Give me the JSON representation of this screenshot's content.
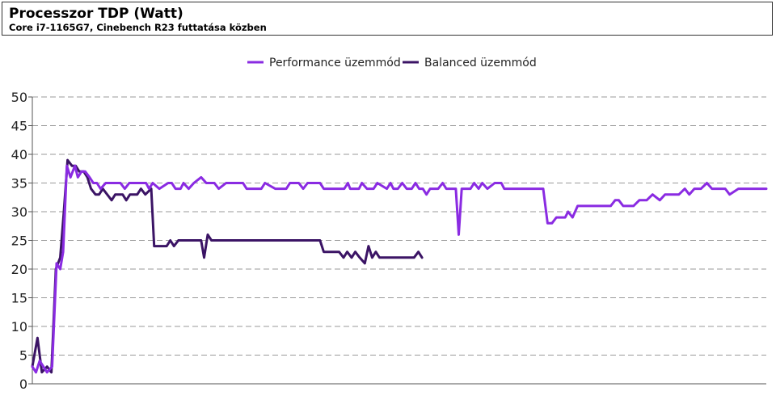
{
  "chart_data": {
    "type": "line",
    "title": "Processzor TDP (Watt)",
    "subtitle": "Core i7-1165G7, Cinebench R23 futtatása közben",
    "xlabel": "",
    "ylabel": "",
    "ylim": [
      0,
      50
    ],
    "yticks": [
      0,
      5,
      10,
      15,
      20,
      25,
      30,
      35,
      40,
      45,
      50
    ],
    "xlim": [
      0,
      100
    ],
    "grid": true,
    "legend_position": "top-center",
    "series": [
      {
        "name": "Performance üzemmód",
        "color": "#8a2be2",
        "points": [
          [
            0,
            3
          ],
          [
            0.5,
            2
          ],
          [
            1,
            4
          ],
          [
            2,
            2
          ],
          [
            2.7,
            3
          ],
          [
            3.3,
            21
          ],
          [
            3.8,
            20
          ],
          [
            4.2,
            23
          ],
          [
            4.7,
            38
          ],
          [
            5.2,
            36
          ],
          [
            5.8,
            38
          ],
          [
            6.2,
            36
          ],
          [
            6.7,
            37
          ],
          [
            7.2,
            37
          ],
          [
            7.8,
            36
          ],
          [
            8.3,
            35
          ],
          [
            8.8,
            35
          ],
          [
            9.3,
            34
          ],
          [
            10,
            35
          ],
          [
            12,
            35
          ],
          [
            12.6,
            34
          ],
          [
            13.2,
            35
          ],
          [
            15.5,
            35
          ],
          [
            15.9,
            34
          ],
          [
            16.4,
            35
          ],
          [
            17.3,
            34
          ],
          [
            18.5,
            35
          ],
          [
            19,
            35
          ],
          [
            19.5,
            34
          ],
          [
            20.2,
            34
          ],
          [
            20.6,
            35
          ],
          [
            21.3,
            34
          ],
          [
            22,
            35
          ],
          [
            23,
            36
          ],
          [
            23.7,
            35
          ],
          [
            24.8,
            35
          ],
          [
            25.4,
            34
          ],
          [
            26.4,
            35
          ],
          [
            28.7,
            35
          ],
          [
            29.2,
            34
          ],
          [
            31.2,
            34
          ],
          [
            31.7,
            35
          ],
          [
            33.1,
            34
          ],
          [
            34.6,
            34
          ],
          [
            35.1,
            35
          ],
          [
            36.3,
            35
          ],
          [
            36.9,
            34
          ],
          [
            37.5,
            35
          ],
          [
            39.2,
            35
          ],
          [
            39.7,
            34
          ],
          [
            42.5,
            34
          ],
          [
            43,
            35
          ],
          [
            43.3,
            34
          ],
          [
            44.5,
            34
          ],
          [
            44.9,
            35
          ],
          [
            45.6,
            34
          ],
          [
            46.5,
            34
          ],
          [
            47,
            35
          ],
          [
            48.3,
            34
          ],
          [
            48.8,
            35
          ],
          [
            49.2,
            34
          ],
          [
            49.8,
            34
          ],
          [
            50.4,
            35
          ],
          [
            51,
            34
          ],
          [
            51.7,
            34
          ],
          [
            52.2,
            35
          ],
          [
            52.7,
            34
          ],
          [
            53.2,
            34
          ],
          [
            53.7,
            33
          ],
          [
            54.2,
            34
          ],
          [
            55.3,
            34
          ],
          [
            55.9,
            35
          ],
          [
            56.4,
            34
          ],
          [
            57.7,
            34
          ],
          [
            58.1,
            26
          ],
          [
            58.5,
            34
          ],
          [
            59.7,
            34
          ],
          [
            60.2,
            35
          ],
          [
            60.8,
            34
          ],
          [
            61.3,
            35
          ],
          [
            62,
            34
          ],
          [
            63,
            35
          ],
          [
            63.9,
            35
          ],
          [
            64.3,
            34
          ],
          [
            69.6,
            34
          ],
          [
            70.2,
            28
          ],
          [
            70.8,
            28
          ],
          [
            71.4,
            29
          ],
          [
            72.6,
            29
          ],
          [
            73,
            30
          ],
          [
            73.6,
            29
          ],
          [
            74.3,
            31
          ],
          [
            78.8,
            31
          ],
          [
            79.4,
            32
          ],
          [
            79.9,
            32
          ],
          [
            80.5,
            31
          ],
          [
            81.9,
            31
          ],
          [
            82.7,
            32
          ],
          [
            83.7,
            32
          ],
          [
            84.5,
            33
          ],
          [
            85.5,
            32
          ],
          [
            86.2,
            33
          ],
          [
            88.1,
            33
          ],
          [
            88.9,
            34
          ],
          [
            89.5,
            33
          ],
          [
            90.2,
            34
          ],
          [
            91.1,
            34
          ],
          [
            91.9,
            35
          ],
          [
            92.6,
            34
          ],
          [
            94.4,
            34
          ],
          [
            95,
            33
          ],
          [
            96.2,
            34
          ],
          [
            100,
            34
          ]
        ]
      },
      {
        "name": "Balanced üzemmód",
        "color": "#3b1465",
        "points": [
          [
            0,
            3
          ],
          [
            0.7,
            8
          ],
          [
            1.3,
            2
          ],
          [
            2,
            3
          ],
          [
            2.6,
            2
          ],
          [
            3.2,
            20
          ],
          [
            3.8,
            22
          ],
          [
            4.3,
            30
          ],
          [
            4.8,
            39
          ],
          [
            5.4,
            38
          ],
          [
            5.9,
            38
          ],
          [
            6.4,
            37
          ],
          [
            7,
            37
          ],
          [
            7.5,
            36
          ],
          [
            8,
            34
          ],
          [
            8.6,
            33
          ],
          [
            9.1,
            33
          ],
          [
            9.6,
            34
          ],
          [
            10.2,
            33
          ],
          [
            10.8,
            32
          ],
          [
            11.3,
            33
          ],
          [
            12.3,
            33
          ],
          [
            12.8,
            32
          ],
          [
            13.3,
            33
          ],
          [
            14.3,
            33
          ],
          [
            14.8,
            34
          ],
          [
            15.4,
            33
          ],
          [
            16.2,
            34
          ],
          [
            16.6,
            24
          ],
          [
            18.3,
            24
          ],
          [
            18.8,
            25
          ],
          [
            19.3,
            24
          ],
          [
            19.9,
            25
          ],
          [
            23,
            25
          ],
          [
            23.4,
            22
          ],
          [
            23.9,
            26
          ],
          [
            24.4,
            25
          ],
          [
            39.2,
            25
          ],
          [
            39.7,
            23
          ],
          [
            40.3,
            23
          ],
          [
            41.8,
            23
          ],
          [
            42.4,
            22
          ],
          [
            42.9,
            23
          ],
          [
            43.5,
            22
          ],
          [
            44,
            23
          ],
          [
            44.6,
            22
          ],
          [
            45.3,
            21
          ],
          [
            45.8,
            24
          ],
          [
            46.3,
            22
          ],
          [
            46.8,
            23
          ],
          [
            47.3,
            22
          ],
          [
            52,
            22
          ],
          [
            52.6,
            23
          ],
          [
            53.1,
            22
          ]
        ]
      }
    ]
  }
}
